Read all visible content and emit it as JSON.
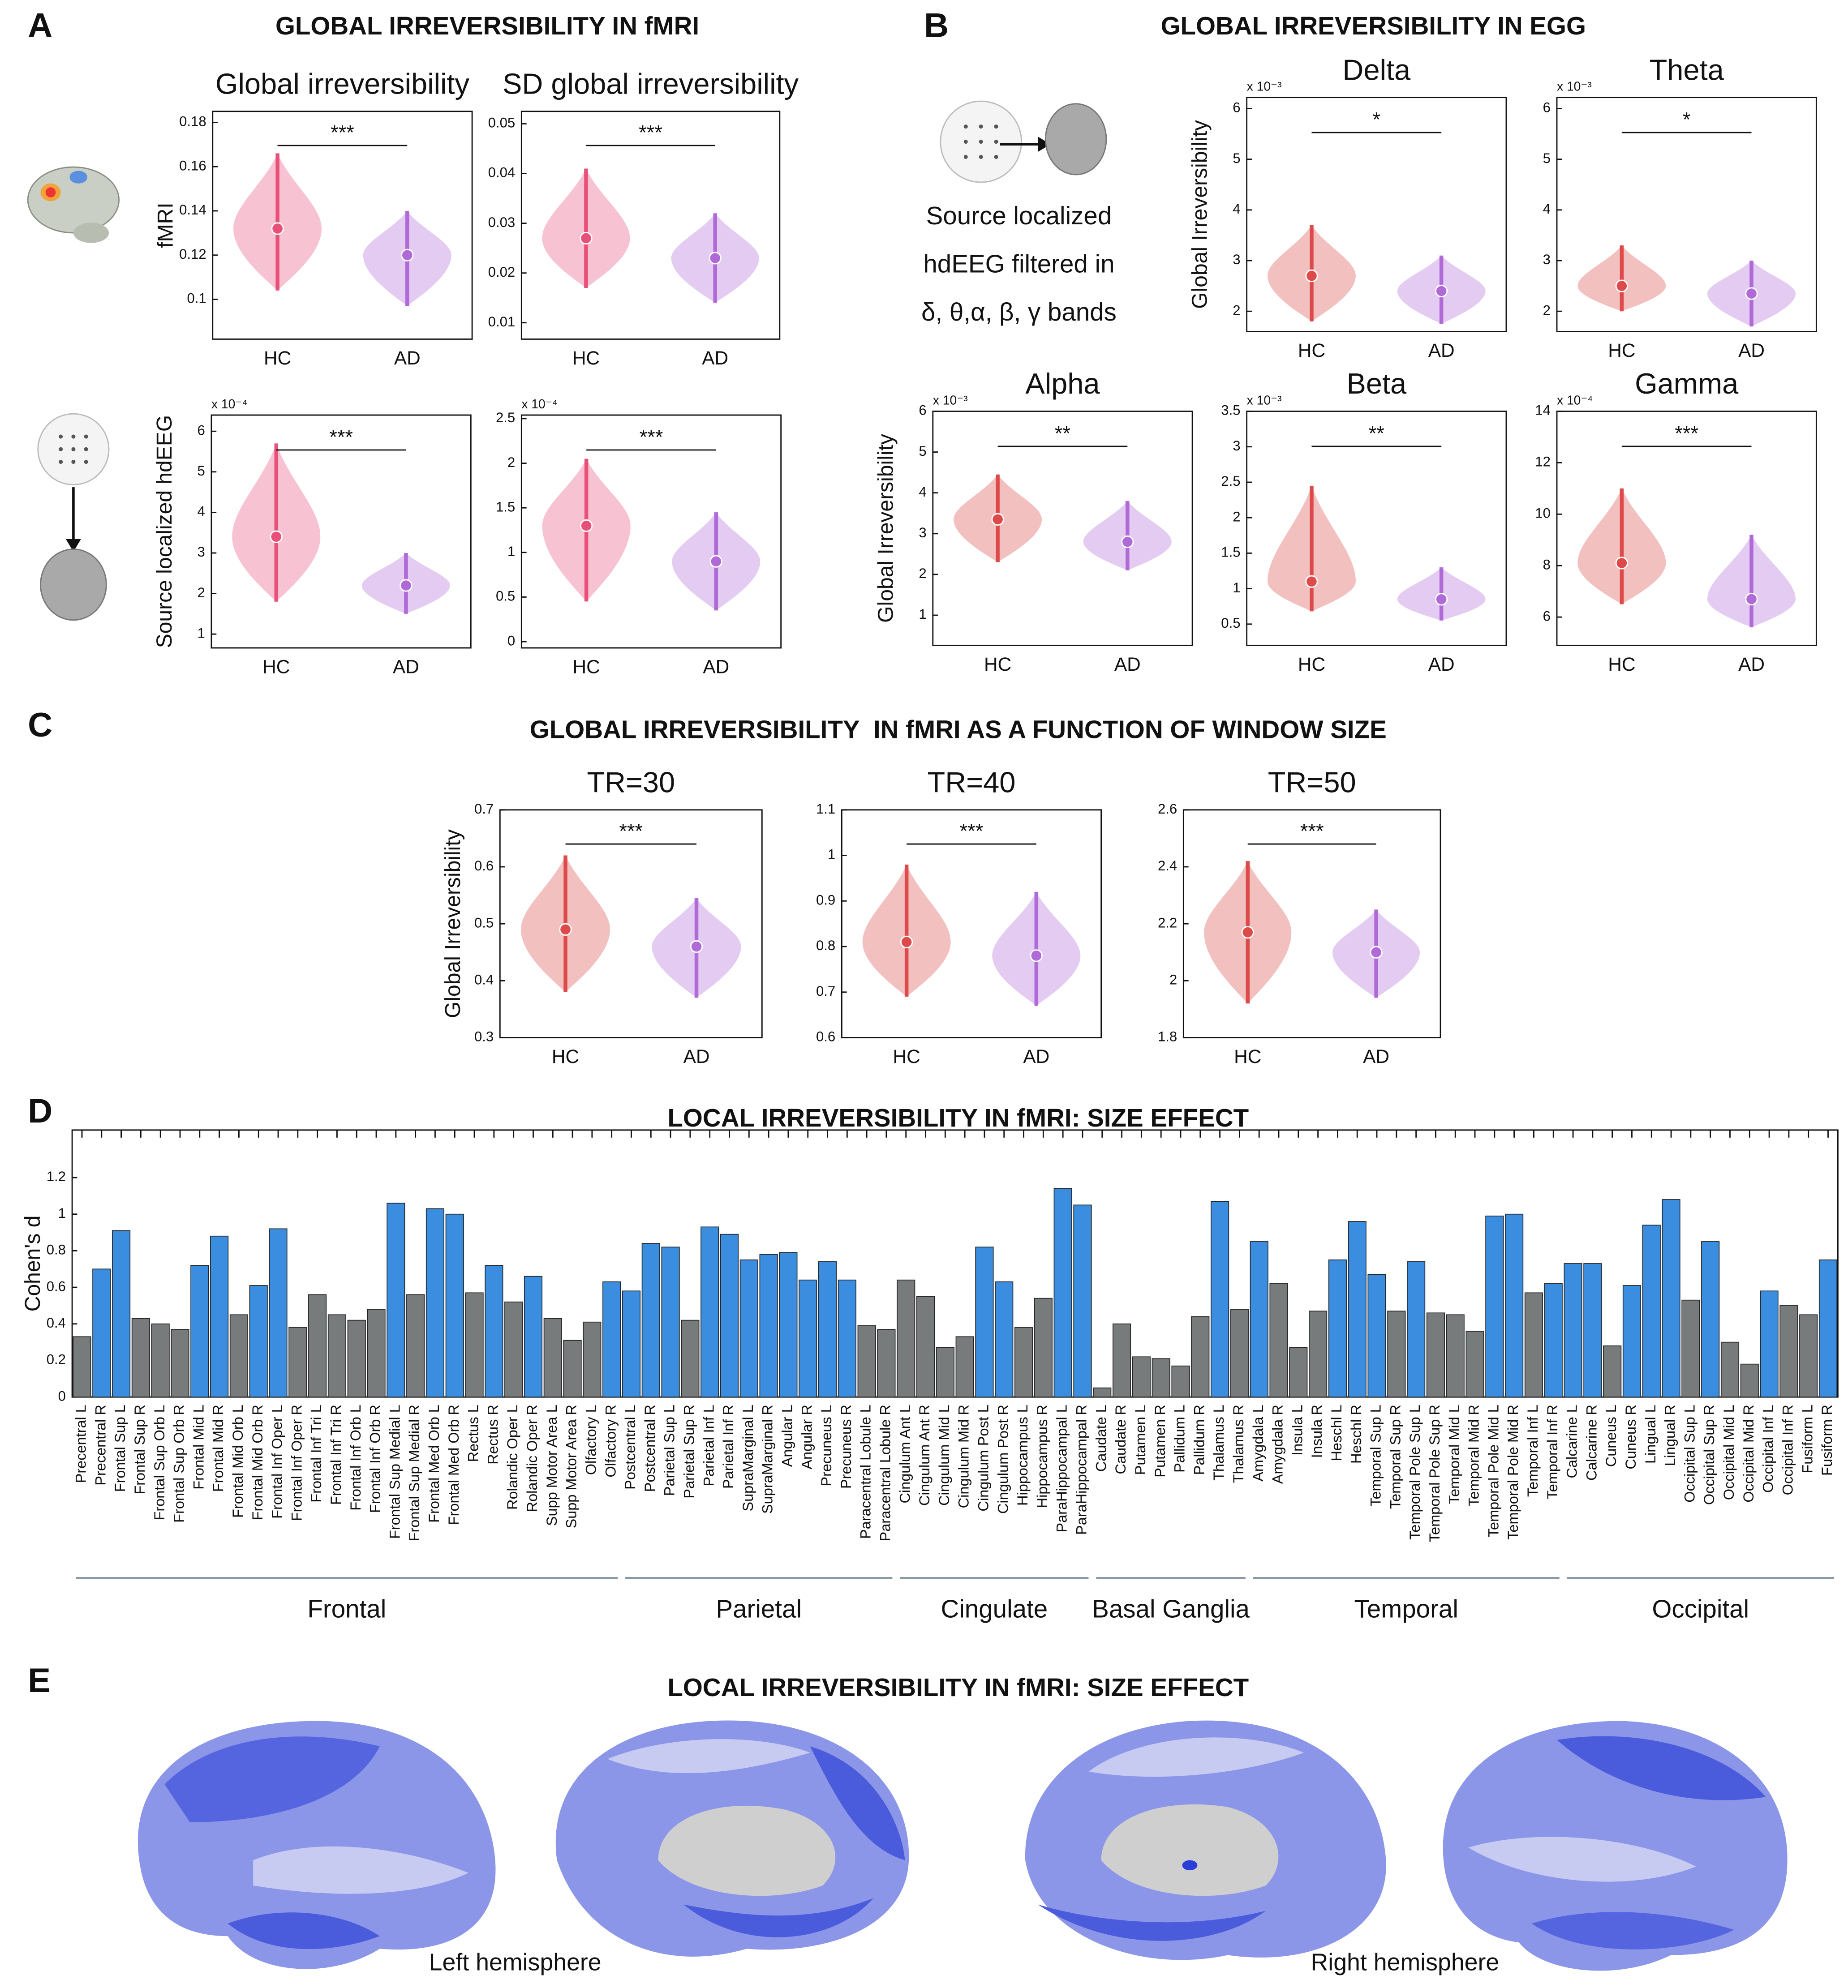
{
  "panels": [
    {
      "label": "A",
      "title": "GLOBAL IRREVERSIBILITY IN fMRI"
    },
    {
      "label": "B",
      "title": "GLOBAL IRREVERSIBILITY IN EGG"
    },
    {
      "label": "C",
      "title": "GLOBAL IRREVERSIBILITY  IN fMRI AS A FUNCTION OF WINDOW SIZE"
    },
    {
      "label": "D",
      "title": "LOCAL IRREVERSIBILITY IN fMRI: SIZE EFFECT"
    },
    {
      "label": "E",
      "title": "LOCAL IRREVERSIBILITY IN fMRI: SIZE EFFECT"
    }
  ],
  "eeg_caption": [
    "Source localized",
    "hdEEG filtered in",
    "δ, θ,α, β, γ bands"
  ],
  "hemisphere_labels": [
    "Left hemisphere",
    "Right hemisphere"
  ],
  "chart_data": [
    {
      "type": "violin",
      "title": "Global irreversibility",
      "ylabel": "fMRI",
      "categories": [
        "HC",
        "AD"
      ],
      "colors": [
        "#e8507a",
        "#b06ad8"
      ],
      "ylim": [
        0.082,
        0.185
      ],
      "yticks": [
        0.1,
        0.12,
        0.14,
        0.16,
        0.18
      ],
      "significance": "***",
      "stats": [
        {
          "min": 0.104,
          "median": 0.132,
          "max": 0.166
        },
        {
          "min": 0.097,
          "median": 0.12,
          "max": 0.14
        }
      ]
    },
    {
      "type": "violin",
      "title": "SD global irreversibility",
      "categories": [
        "HC",
        "AD"
      ],
      "colors": [
        "#e8507a",
        "#b06ad8"
      ],
      "ylim": [
        0.0067,
        0.0525
      ],
      "yticks": [
        0.01,
        0.02,
        0.03,
        0.04,
        0.05
      ],
      "significance": "***",
      "stats": [
        {
          "min": 0.017,
          "median": 0.027,
          "max": 0.041
        },
        {
          "min": 0.014,
          "median": 0.023,
          "max": 0.032
        }
      ]
    },
    {
      "type": "violin",
      "ylabel": "Source localized hdEEG",
      "scale_label": "x 10⁻⁴",
      "categories": [
        "HC",
        "AD"
      ],
      "colors": [
        "#e8507a",
        "#b06ad8"
      ],
      "ylim": [
        0.66,
        6.4
      ],
      "yticks": [
        1,
        2,
        3,
        4,
        5,
        6
      ],
      "significance": "***",
      "stats": [
        {
          "min": 1.8,
          "median": 3.4,
          "max": 5.7
        },
        {
          "min": 1.5,
          "median": 2.2,
          "max": 3.0
        }
      ]
    },
    {
      "type": "violin",
      "scale_label": "x 10⁻⁴",
      "categories": [
        "HC",
        "AD"
      ],
      "colors": [
        "#e8507a",
        "#b06ad8"
      ],
      "ylim": [
        -0.07,
        2.54
      ],
      "yticks": [
        0,
        0.5,
        1,
        1.5,
        2,
        2.5
      ],
      "significance": "***",
      "stats": [
        {
          "min": 0.45,
          "median": 1.3,
          "max": 2.05
        },
        {
          "min": 0.35,
          "median": 0.9,
          "max": 1.45
        }
      ]
    },
    {
      "type": "violin",
      "title": "Delta",
      "ylabel": "Global Irreversibility",
      "scale_label": "x 10⁻³",
      "categories": [
        "HC",
        "AD"
      ],
      "colors": [
        "#de4a4a",
        "#b06ad8"
      ],
      "ylim": [
        1.6,
        6.22
      ],
      "yticks": [
        2,
        3,
        4,
        5,
        6
      ],
      "significance": "*",
      "stats": [
        {
          "min": 1.8,
          "median": 2.7,
          "max": 3.7
        },
        {
          "min": 1.75,
          "median": 2.4,
          "max": 3.1
        }
      ]
    },
    {
      "type": "violin",
      "title": "Theta",
      "scale_label": "x 10⁻³",
      "categories": [
        "HC",
        "AD"
      ],
      "colors": [
        "#de4a4a",
        "#b06ad8"
      ],
      "ylim": [
        1.6,
        6.22
      ],
      "yticks": [
        2,
        3,
        4,
        5,
        6
      ],
      "significance": "*",
      "stats": [
        {
          "min": 2.0,
          "median": 2.5,
          "max": 3.3
        },
        {
          "min": 1.7,
          "median": 2.35,
          "max": 3.0
        }
      ]
    },
    {
      "type": "violin",
      "title": "Alpha",
      "ylabel": "Global Irreversibility",
      "scale_label": "x 10⁻³",
      "categories": [
        "HC",
        "AD"
      ],
      "colors": [
        "#de4a4a",
        "#b06ad8"
      ],
      "ylim": [
        0.26,
        6
      ],
      "yticks": [
        1,
        2,
        3,
        4,
        5,
        6
      ],
      "significance": "**",
      "stats": [
        {
          "min": 2.3,
          "median": 3.35,
          "max": 4.45
        },
        {
          "min": 2.1,
          "median": 2.8,
          "max": 3.8
        }
      ]
    },
    {
      "type": "violin",
      "title": "Beta",
      "scale_label": "x 10⁻³",
      "categories": [
        "HC",
        "AD"
      ],
      "colors": [
        "#de4a4a",
        "#b06ad8"
      ],
      "ylim": [
        0.2,
        3.5
      ],
      "yticks": [
        0.5,
        1,
        1.5,
        2,
        2.5,
        3,
        3.5
      ],
      "significance": "**",
      "stats": [
        {
          "min": 0.68,
          "median": 1.1,
          "max": 2.45
        },
        {
          "min": 0.55,
          "median": 0.85,
          "max": 1.3
        }
      ]
    },
    {
      "type": "violin",
      "title": "Gamma",
      "scale_label": "x 10⁻⁴",
      "categories": [
        "HC",
        "AD"
      ],
      "colors": [
        "#de4a4a",
        "#b06ad8"
      ],
      "ylim": [
        4.9,
        14
      ],
      "yticks": [
        6,
        8,
        10,
        12,
        14
      ],
      "significance": "***",
      "stats": [
        {
          "min": 6.5,
          "median": 8.1,
          "max": 11
        },
        {
          "min": 5.6,
          "median": 6.7,
          "max": 9.2
        }
      ]
    },
    {
      "type": "violin",
      "title": "TR=30",
      "ylabel": "Global Irreversibility",
      "categories": [
        "HC",
        "AD"
      ],
      "colors": [
        "#de4a4a",
        "#b06ad8"
      ],
      "ylim": [
        0.3,
        0.7
      ],
      "yticks": [
        0.3,
        0.4,
        0.5,
        0.6,
        0.7
      ],
      "significance": "***",
      "stats": [
        {
          "min": 0.38,
          "median": 0.49,
          "max": 0.62
        },
        {
          "min": 0.37,
          "median": 0.46,
          "max": 0.545
        }
      ]
    },
    {
      "type": "violin",
      "title": "TR=40",
      "categories": [
        "HC",
        "AD"
      ],
      "colors": [
        "#de4a4a",
        "#b06ad8"
      ],
      "ylim": [
        0.6,
        1.1
      ],
      "yticks": [
        0.6,
        0.7,
        0.8,
        0.9,
        1,
        1.1
      ],
      "significance": "***",
      "stats": [
        {
          "min": 0.69,
          "median": 0.81,
          "max": 0.98
        },
        {
          "min": 0.67,
          "median": 0.78,
          "max": 0.92
        }
      ]
    },
    {
      "type": "violin",
      "title": "TR=50",
      "categories": [
        "HC",
        "AD"
      ],
      "colors": [
        "#de4a4a",
        "#b06ad8"
      ],
      "ylim": [
        1.8,
        2.6
      ],
      "yticks": [
        1.8,
        2,
        2.2,
        2.4,
        2.6
      ],
      "significance": "***",
      "stats": [
        {
          "min": 1.92,
          "median": 2.17,
          "max": 2.42
        },
        {
          "min": 1.94,
          "median": 2.1,
          "max": 2.25
        }
      ]
    },
    {
      "type": "bar",
      "ylabel": "Cohen's d",
      "ylim": [
        0,
        1.46
      ],
      "yticks": [
        0,
        0.2,
        0.4,
        0.6,
        0.8,
        1,
        1.2
      ],
      "groups": [
        "Frontal",
        "Parietal",
        "Cingulate",
        "Basal Ganglia",
        "Temporal",
        "Occipital"
      ],
      "categories": [
        "Precentral L",
        "Precentral R",
        "Frontal Sup L",
        "Frontal Sup R",
        "Frontal Sup Orb L",
        "Frontal Sup Orb R",
        "Frontal Mid L",
        "Frontal Mid R",
        "Frontal Mid Orb L",
        "Frontal Mid Orb R",
        "Frontal Inf Oper L",
        "Frontal Inf Oper R",
        "Frontal Inf Tri L",
        "Frontal Inf Tri R",
        "Frontal Inf Orb L",
        "Frontal Inf Orb R",
        "Frontal Sup Medial L",
        "Frontal Sup Medial R",
        "Frontal Med Orb L",
        "Frontal Med Orb R",
        "Rectus L",
        "Rectus R",
        "Rolandic Oper L",
        "Rolandic Oper R",
        "Supp Motor Area L",
        "Supp Motor Area R",
        "Olfactory L",
        "Olfactory R",
        "Postcentral L",
        "Postcentral R",
        "Parietal Sup L",
        "Parietal Sup R",
        "Parietal Inf L",
        "Parietal Inf R",
        "SupraMarginal L",
        "SupraMarginal R",
        "Angular L",
        "Angular R",
        "Precuneus L",
        "Precuneus R",
        "Paracentral Lobule L",
        "Paracentral Lobule R",
        "Cingulum Ant L",
        "Cingulum Ant R",
        "Cingulum Mid L",
        "Cingulum Mid R",
        "Cingulum Post L",
        "Cingulum Post R",
        "Hippocampus L",
        "Hippocampus R",
        "ParaHippocampal L",
        "ParaHippocampal R",
        "Caudate L",
        "Caudate R",
        "Putamen L",
        "Putamen R",
        "Pallidum L",
        "Pallidum R",
        "Thalamus L",
        "Thalamus R",
        "Amygdala L",
        "Amygdala R",
        "Insula L",
        "Insula R",
        "Heschl L",
        "Heschl R",
        "Temporal Sup L",
        "Temporal Sup R",
        "Temporal Pole Sup L",
        "Temporal Pole Sup R",
        "Temporal Mid L",
        "Temporal Mid R",
        "Temporal Pole Mid L",
        "Temporal Pole Mid R",
        "Temporal Inf L",
        "Temporal Inf R",
        "Calcarine L",
        "Calcarine R",
        "Cuneus L",
        "Cuneus R",
        "Lingual L",
        "Lingual R",
        "Occipital Sup L",
        "Occipital Sup R",
        "Occipital Mid L",
        "Occipital Mid R",
        "Occipital Inf L",
        "Occipital Inf R",
        "Fusiform L",
        "Fusiform R"
      ],
      "values": [
        0.33,
        0.7,
        0.91,
        0.43,
        0.4,
        0.37,
        0.72,
        0.88,
        0.45,
        0.61,
        0.92,
        0.38,
        0.56,
        0.45,
        0.42,
        0.48,
        1.06,
        0.56,
        1.03,
        1.0,
        0.57,
        0.72,
        0.52,
        0.66,
        0.43,
        0.31,
        0.41,
        0.63,
        0.58,
        0.84,
        0.82,
        0.42,
        0.93,
        0.89,
        0.75,
        0.78,
        0.79,
        0.64,
        0.74,
        0.64,
        0.39,
        0.37,
        0.64,
        0.55,
        0.27,
        0.33,
        0.82,
        0.63,
        0.38,
        0.54,
        1.14,
        1.05,
        0.05,
        0.4,
        0.22,
        0.21,
        0.17,
        0.44,
        1.07,
        0.48,
        0.85,
        0.62,
        0.27,
        0.47,
        0.75,
        0.96,
        0.67,
        0.47,
        0.74,
        0.46,
        0.45,
        0.36,
        0.99,
        1.0,
        0.57,
        0.62,
        0.73,
        0.73,
        0.28,
        0.61,
        0.94,
        1.08,
        0.53,
        0.85,
        0.3,
        0.18,
        0.58,
        0.5,
        0.45,
        0.75
      ],
      "colors": [
        "#777b7b",
        "#3b8de0",
        "#3b8de0",
        "#777b7b",
        "#777b7b",
        "#777b7b",
        "#3b8de0",
        "#3b8de0",
        "#777b7b",
        "#3b8de0",
        "#3b8de0",
        "#777b7b",
        "#777b7b",
        "#777b7b",
        "#777b7b",
        "#777b7b",
        "#3b8de0",
        "#777b7b",
        "#3b8de0",
        "#3b8de0",
        "#777b7b",
        "#3b8de0",
        "#777b7b",
        "#3b8de0",
        "#777b7b",
        "#777b7b",
        "#777b7b",
        "#3b8de0",
        "#3b8de0",
        "#3b8de0",
        "#3b8de0",
        "#777b7b",
        "#3b8de0",
        "#3b8de0",
        "#3b8de0",
        "#3b8de0",
        "#3b8de0",
        "#3b8de0",
        "#3b8de0",
        "#3b8de0",
        "#777b7b",
        "#777b7b",
        "#777b7b",
        "#777b7b",
        "#777b7b",
        "#777b7b",
        "#3b8de0",
        "#3b8de0",
        "#777b7b",
        "#777b7b",
        "#3b8de0",
        "#3b8de0",
        "#777b7b",
        "#777b7b",
        "#777b7b",
        "#777b7b",
        "#777b7b",
        "#777b7b",
        "#3b8de0",
        "#777b7b",
        "#3b8de0",
        "#777b7b",
        "#777b7b",
        "#777b7b",
        "#3b8de0",
        "#3b8de0",
        "#3b8de0",
        "#777b7b",
        "#3b8de0",
        "#777b7b",
        "#777b7b",
        "#777b7b",
        "#3b8de0",
        "#3b8de0",
        "#777b7b",
        "#3b8de0",
        "#3b8de0",
        "#3b8de0",
        "#777b7b",
        "#3b8de0",
        "#3b8de0",
        "#3b8de0",
        "#777b7b",
        "#3b8de0",
        "#777b7b",
        "#777b7b",
        "#3b8de0",
        "#777b7b",
        "#777b7b",
        "#3b8de0"
      ]
    }
  ]
}
